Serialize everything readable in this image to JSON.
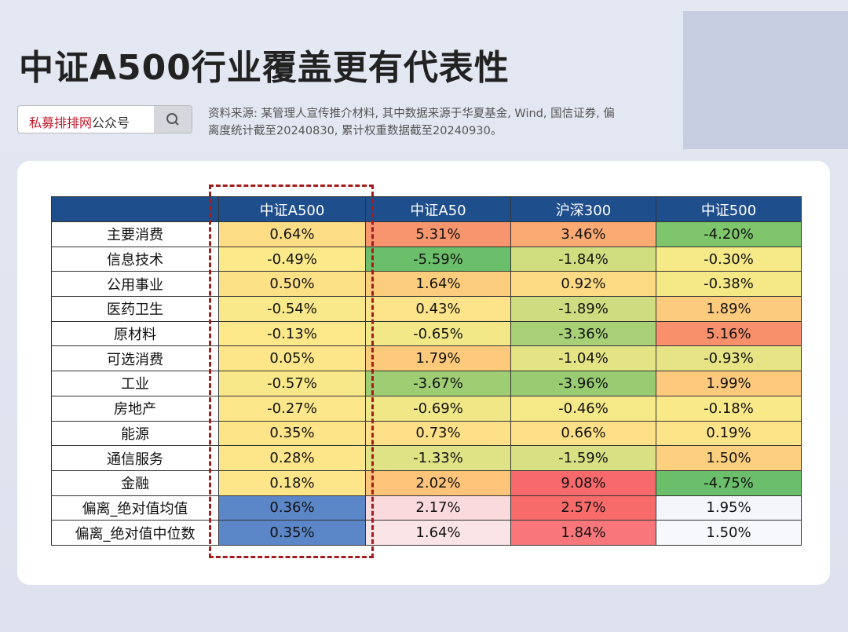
{
  "header": {
    "title": "中证A500行业覆盖更有代表性",
    "search_brand": "私募排排网",
    "search_suffix": "公众号",
    "source_lines": [
      "资料来源: 某管理人宣传推介材料, 其中数据来源于华夏基金, Wind, 国信证券, 偏",
      "离度统计截至20240830, 累计权重数据截至20240930。"
    ]
  },
  "table": {
    "columns": [
      "中证A500",
      "中证A50",
      "沪深300",
      "中证500"
    ],
    "rows": [
      [
        "主要消费",
        "0.64%",
        "5.31%",
        "3.46%",
        "-4.20%"
      ],
      [
        "信息技术",
        "-0.49%",
        "-5.59%",
        "-1.84%",
        "-0.30%"
      ],
      [
        "公用事业",
        "0.50%",
        "1.64%",
        "0.92%",
        "-0.38%"
      ],
      [
        "医药卫生",
        "-0.54%",
        "0.43%",
        "-1.89%",
        "1.89%"
      ],
      [
        "原材料",
        "-0.13%",
        "-0.65%",
        "-3.36%",
        "5.16%"
      ],
      [
        "可选消费",
        "0.05%",
        "1.79%",
        "-1.04%",
        "-0.93%"
      ],
      [
        "工业",
        "-0.57%",
        "-3.67%",
        "-3.96%",
        "1.99%"
      ],
      [
        "房地产",
        "-0.27%",
        "-0.69%",
        "-0.46%",
        "-0.18%"
      ],
      [
        "能源",
        "0.35%",
        "0.73%",
        "0.66%",
        "0.19%"
      ],
      [
        "通信服务",
        "0.28%",
        "-1.33%",
        "-1.59%",
        "1.50%"
      ],
      [
        "金融",
        "0.18%",
        "2.02%",
        "9.08%",
        "-4.75%"
      ],
      [
        "偏离_绝对值均值",
        "0.36%",
        "2.17%",
        "2.57%",
        "1.95%"
      ],
      [
        "偏离_绝对值中位数",
        "0.35%",
        "1.64%",
        "1.84%",
        "1.50%"
      ]
    ],
    "cell_colors": [
      [
        "#fdde87",
        "#f7956e",
        "#fbaa73",
        "#7ec56c"
      ],
      [
        "#fbe98a",
        "#6bbf6a",
        "#d1de80",
        "#f6e987"
      ],
      [
        "#fde187",
        "#fdcd7e",
        "#fddb85",
        "#f4e887"
      ],
      [
        "#fae98a",
        "#fde48a",
        "#cfdd80",
        "#fdcb7d"
      ],
      [
        "#fde88a",
        "#f2e888",
        "#a8d077",
        "#f8906c"
      ],
      [
        "#fde689",
        "#fdca7c",
        "#e4e485",
        "#e7e485"
      ],
      [
        "#f9e889",
        "#9fcd74",
        "#98cb72",
        "#fdc97c"
      ],
      [
        "#fce88a",
        "#f0e787",
        "#f5e988",
        "#f9e988"
      ],
      [
        "#fde488",
        "#fde088",
        "#fde087",
        "#fde488"
      ],
      [
        "#fde589",
        "#dfe385",
        "#d8e083",
        "#fdd07f"
      ],
      [
        "#fde689",
        "#fdc47a",
        "#f8696b",
        "#6bbf6a"
      ],
      [
        "#5b87c9",
        "#fadadd",
        "#f86b6b",
        "#f4f6fc"
      ],
      [
        "#5b87c9",
        "#fbe4e6",
        "#f9777a",
        "#f6f8fc"
      ]
    ]
  }
}
